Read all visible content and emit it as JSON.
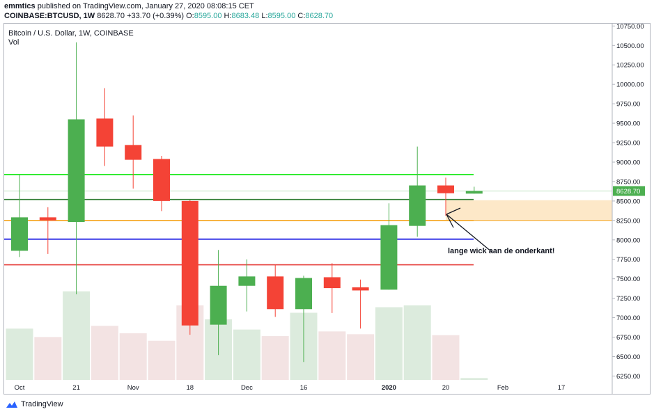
{
  "header": {
    "author": "emmtics",
    "published_text": "published on TradingView.com, January 27, 2020 08:08:15 CET",
    "symbol_line": "COINBASE:BTCUSD, 1W",
    "last": "8628.70",
    "change": "+33.70 (+0.39%)",
    "o_label": "O:",
    "o": "8595.00",
    "h_label": "H:",
    "h": "8683.48",
    "l_label": "L:",
    "l": "8595.00",
    "c_label": "C:",
    "c": "8628.70"
  },
  "chart": {
    "symbol_title": "Bitcoin / U.S. Dollar, 1W, COINBASE",
    "vol_label": "Vol",
    "annotation": "lange wick aan de onderkant!",
    "footer_brand": "TradingView"
  },
  "colors": {
    "up": "#4caf50",
    "down": "#f44336",
    "vol_up": "#dcebdd",
    "vol_down": "#f3e3e3",
    "line_green_bright": "#00e600",
    "line_green_dark": "#2e7d32",
    "line_orange": "#f5a623",
    "line_blue": "#0000e0",
    "line_red": "#e53935",
    "zone_fill": "#fde8c8"
  },
  "chart_data": {
    "type": "candlestick",
    "ylim": [
      6200,
      10780
    ],
    "y_ticks": [
      "10750.00",
      "10500.00",
      "10250.00",
      "10000.00",
      "9750.00",
      "9500.00",
      "9250.00",
      "9000.00",
      "8750.00",
      "8500.00",
      "8250.00",
      "8000.00",
      "7750.00",
      "7500.00",
      "7250.00",
      "7000.00",
      "6750.00",
      "6500.00",
      "6250.00"
    ],
    "x_ticks": [
      "Oct",
      "21",
      "Nov",
      "18",
      "Dec",
      "16",
      "2020",
      "20",
      "Feb",
      "17"
    ],
    "last_price_label": "8628.70",
    "candles": [
      {
        "o": 7860,
        "h": 8840,
        "l": 7780,
        "c": 8290,
        "vol": 0.55
      },
      {
        "o": 8290,
        "h": 8420,
        "l": 7820,
        "c": 8250,
        "vol": 0.46
      },
      {
        "o": 8230,
        "h": 10540,
        "l": 7300,
        "c": 9550,
        "vol": 0.95
      },
      {
        "o": 9560,
        "h": 9950,
        "l": 8950,
        "c": 9200,
        "vol": 0.58
      },
      {
        "o": 9220,
        "h": 9600,
        "l": 8660,
        "c": 9030,
        "vol": 0.5
      },
      {
        "o": 9040,
        "h": 9080,
        "l": 8370,
        "c": 8500,
        "vol": 0.42
      },
      {
        "o": 8500,
        "h": 8510,
        "l": 6780,
        "c": 6900,
        "vol": 0.8
      },
      {
        "o": 6910,
        "h": 7870,
        "l": 6520,
        "c": 7410,
        "vol": 0.65
      },
      {
        "o": 7410,
        "h": 7750,
        "l": 7080,
        "c": 7530,
        "vol": 0.54
      },
      {
        "o": 7530,
        "h": 7680,
        "l": 7010,
        "c": 7110,
        "vol": 0.47
      },
      {
        "o": 7110,
        "h": 7540,
        "l": 6430,
        "c": 7510,
        "vol": 0.72
      },
      {
        "o": 7520,
        "h": 7700,
        "l": 7060,
        "c": 7380,
        "vol": 0.52
      },
      {
        "o": 7390,
        "h": 7490,
        "l": 6860,
        "c": 7350,
        "vol": 0.49
      },
      {
        "o": 7360,
        "h": 8470,
        "l": 7360,
        "c": 8190,
        "vol": 0.78
      },
      {
        "o": 8180,
        "h": 9200,
        "l": 8040,
        "c": 8700,
        "vol": 0.8
      },
      {
        "o": 8700,
        "h": 8800,
        "l": 8310,
        "c": 8600,
        "vol": 0.48
      },
      {
        "o": 8595,
        "h": 8683.48,
        "l": 8595,
        "c": 8628.7,
        "vol": 0.02
      }
    ],
    "hlines": [
      {
        "price": 8840,
        "color_key": "line_green_bright"
      },
      {
        "price": 8520,
        "color_key": "line_green_dark"
      },
      {
        "price": 8250,
        "color_key": "line_orange"
      },
      {
        "price": 8010,
        "color_key": "line_blue"
      },
      {
        "price": 7680,
        "color_key": "line_red"
      }
    ],
    "zone": {
      "top": 8510,
      "bottom": 8250
    }
  }
}
